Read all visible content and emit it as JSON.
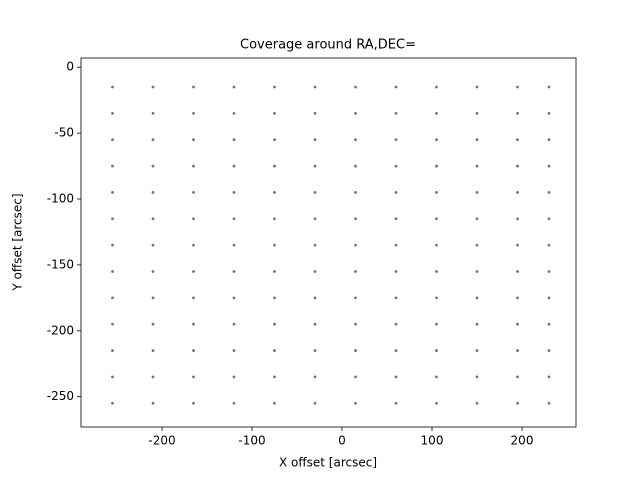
{
  "chart_data": {
    "type": "scatter",
    "title": "Coverage around RA,DEC=",
    "xlabel": "X offset [arcsec]",
    "ylabel": "Y offset [arcsec]",
    "color": "#000000",
    "xlim": [
      -290,
      260
    ],
    "ylim": [
      -273,
      7
    ],
    "xticks": [
      -200,
      -100,
      0,
      100,
      200
    ],
    "yticks": [
      0,
      -50,
      -100,
      -150,
      -200,
      -250
    ],
    "x": [
      -255,
      -210,
      -165,
      -120,
      -75,
      -30,
      15,
      60,
      105,
      150,
      195,
      230,
      -255,
      -210,
      -165,
      -120,
      -75,
      -30,
      15,
      60,
      105,
      150,
      195,
      230,
      -255,
      -210,
      -165,
      -120,
      -75,
      -30,
      15,
      60,
      105,
      150,
      195,
      230,
      -255,
      -210,
      -165,
      -120,
      -75,
      -30,
      15,
      60,
      105,
      150,
      195,
      230,
      -255,
      -210,
      -165,
      -120,
      -75,
      -30,
      15,
      60,
      105,
      150,
      195,
      230,
      -255,
      -210,
      -165,
      -120,
      -75,
      -30,
      15,
      60,
      105,
      150,
      195,
      230,
      -255,
      -210,
      -165,
      -120,
      -75,
      -30,
      15,
      60,
      105,
      150,
      195,
      230,
      -255,
      -210,
      -165,
      -120,
      -75,
      -30,
      15,
      60,
      105,
      150,
      195,
      230,
      -255,
      -210,
      -165,
      -120,
      -75,
      -30,
      15,
      60,
      105,
      150,
      195,
      230,
      -255,
      -210,
      -165,
      -120,
      -75,
      -30,
      15,
      60,
      105,
      150,
      195,
      230,
      -255,
      -210,
      -165,
      -120,
      -75,
      -30,
      15,
      60,
      105,
      150,
      195,
      230,
      -255,
      -210,
      -165,
      -120,
      -75,
      -30,
      15,
      60,
      105,
      150,
      195,
      230,
      -255,
      -210,
      -165,
      -120,
      -75,
      -30,
      15,
      60,
      105,
      150,
      195,
      230
    ],
    "y": [
      -15,
      -15,
      -15,
      -15,
      -15,
      -15,
      -15,
      -15,
      -15,
      -15,
      -15,
      -15,
      -35,
      -35,
      -35,
      -35,
      -35,
      -35,
      -35,
      -35,
      -35,
      -35,
      -35,
      -35,
      -55,
      -55,
      -55,
      -55,
      -55,
      -55,
      -55,
      -55,
      -55,
      -55,
      -55,
      -55,
      -75,
      -75,
      -75,
      -75,
      -75,
      -75,
      -75,
      -75,
      -75,
      -75,
      -75,
      -75,
      -95,
      -95,
      -95,
      -95,
      -95,
      -95,
      -95,
      -95,
      -95,
      -95,
      -95,
      -95,
      -115,
      -115,
      -115,
      -115,
      -115,
      -115,
      -115,
      -115,
      -115,
      -115,
      -115,
      -115,
      -135,
      -135,
      -135,
      -135,
      -135,
      -135,
      -135,
      -135,
      -135,
      -135,
      -135,
      -135,
      -155,
      -155,
      -155,
      -155,
      -155,
      -155,
      -155,
      -155,
      -155,
      -155,
      -155,
      -155,
      -175,
      -175,
      -175,
      -175,
      -175,
      -175,
      -175,
      -175,
      -175,
      -175,
      -175,
      -175,
      -195,
      -195,
      -195,
      -195,
      -195,
      -195,
      -195,
      -195,
      -195,
      -195,
      -195,
      -195,
      -215,
      -215,
      -215,
      -215,
      -215,
      -215,
      -215,
      -215,
      -215,
      -215,
      -215,
      -215,
      -235,
      -235,
      -235,
      -235,
      -235,
      -235,
      -235,
      -235,
      -235,
      -235,
      -235,
      -235,
      -255,
      -255,
      -255,
      -255,
      -255,
      -255,
      -255,
      -255,
      -255,
      -255,
      -255,
      -255
    ]
  }
}
